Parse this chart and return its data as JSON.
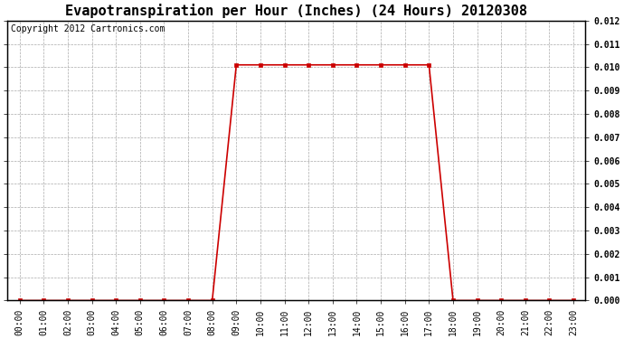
{
  "title": "Evapotranspiration per Hour (Inches) (24 Hours) 20120308",
  "copyright_text": "Copyright 2012 Cartronics.com",
  "x_labels": [
    "00:00",
    "01:00",
    "02:00",
    "03:00",
    "04:00",
    "05:00",
    "06:00",
    "07:00",
    "08:00",
    "09:00",
    "10:00",
    "11:00",
    "12:00",
    "13:00",
    "14:00",
    "15:00",
    "16:00",
    "17:00",
    "18:00",
    "19:00",
    "20:00",
    "21:00",
    "22:00",
    "23:00"
  ],
  "x_values": [
    0,
    1,
    2,
    3,
    4,
    5,
    6,
    7,
    8,
    9,
    10,
    11,
    12,
    13,
    14,
    15,
    16,
    17,
    18,
    19,
    20,
    21,
    22,
    23
  ],
  "y_values": [
    0.0,
    0.0,
    0.0,
    0.0,
    0.0,
    0.0,
    0.0,
    0.0,
    0.0,
    0.0101,
    0.0101,
    0.0101,
    0.0101,
    0.0101,
    0.0101,
    0.0101,
    0.0101,
    0.0101,
    0.0,
    0.0,
    0.0,
    0.0,
    0.0,
    0.0
  ],
  "line_color": "#cc0000",
  "marker": "s",
  "marker_size": 3,
  "ylim": [
    0,
    0.012
  ],
  "yticks": [
    0.0,
    0.001,
    0.002,
    0.003,
    0.004,
    0.005,
    0.006,
    0.007,
    0.008,
    0.009,
    0.01,
    0.011,
    0.012
  ],
  "background_color": "#ffffff",
  "grid_color": "#aaaaaa",
  "title_fontsize": 11,
  "copyright_fontsize": 7,
  "tick_fontsize": 7,
  "figsize": [
    6.9,
    3.75
  ],
  "dpi": 100
}
